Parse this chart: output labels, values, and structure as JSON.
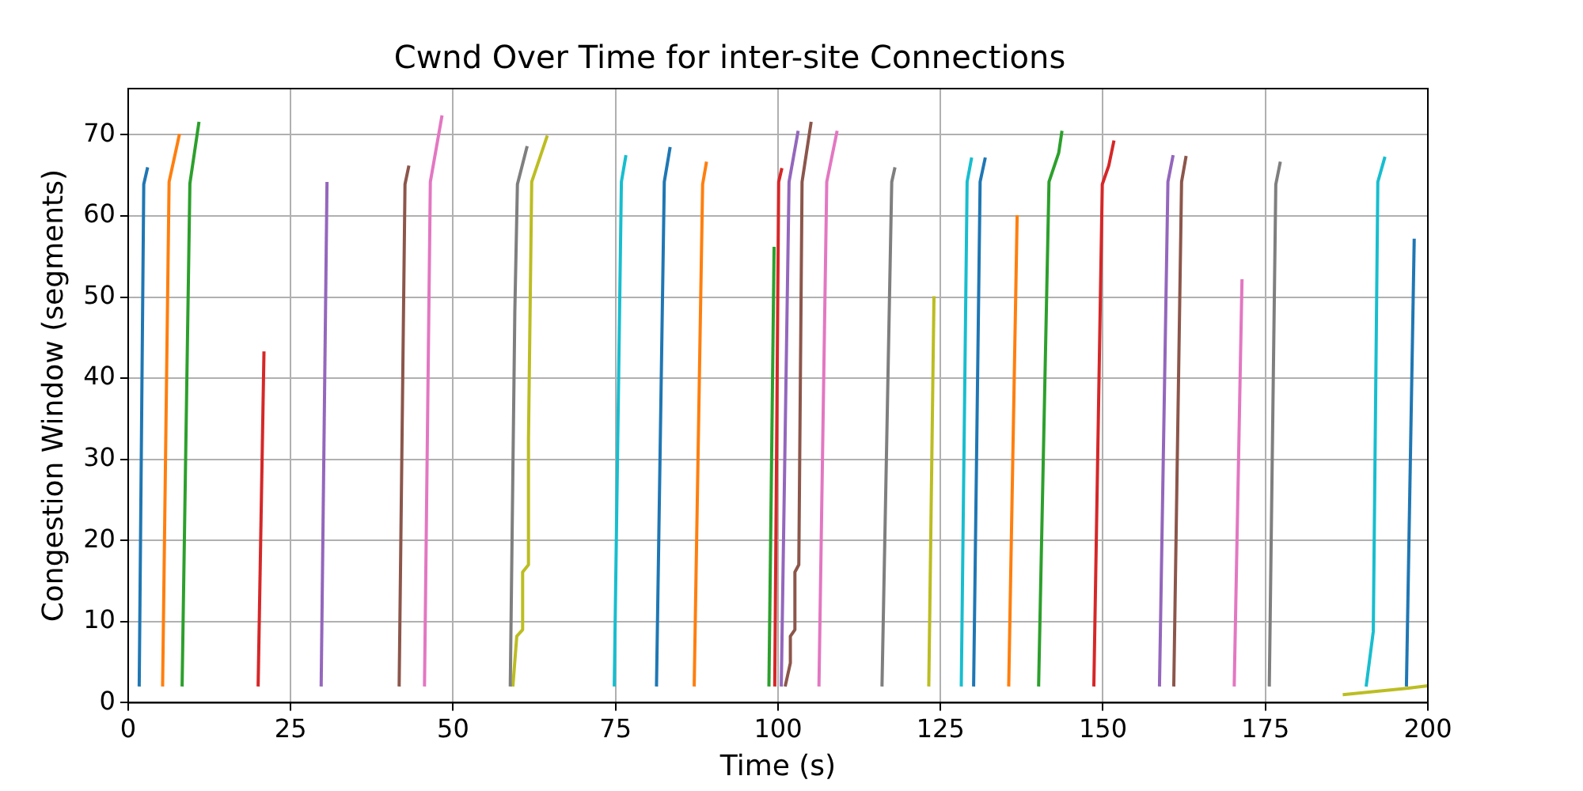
{
  "chart_data": {
    "type": "line",
    "title": "Cwnd Over Time for inter-site Connections",
    "xlabel": "Time (s)",
    "ylabel": "Congestion Window (segments)",
    "xlim": [
      0,
      200
    ],
    "ylim": [
      0,
      75.7
    ],
    "xticks": [
      0,
      25,
      50,
      75,
      100,
      125,
      150,
      175,
      200
    ],
    "yticks": [
      0,
      10,
      20,
      30,
      40,
      50,
      60,
      70
    ],
    "grid": true,
    "legend": false,
    "marker": "none",
    "line_style": "solid",
    "series": [
      {
        "color": "#1f77b4",
        "x": [
          1.7,
          2.4,
          3.0
        ],
        "values": [
          2,
          63.9,
          66
        ]
      },
      {
        "color": "#ff7f0e",
        "x": [
          5.3,
          6.3,
          7.9
        ],
        "values": [
          2,
          64.2,
          70.1
        ]
      },
      {
        "color": "#2ca02c",
        "x": [
          8.3,
          9.5,
          10.9
        ],
        "values": [
          2,
          64,
          71.6
        ]
      },
      {
        "color": "#d62728",
        "x": [
          20.0,
          20.9
        ],
        "values": [
          2,
          43.3
        ]
      },
      {
        "color": "#9467bd",
        "x": [
          29.7,
          30.6
        ],
        "values": [
          2,
          64.2
        ]
      },
      {
        "color": "#8c564b",
        "x": [
          41.7,
          42.6,
          43.2
        ],
        "values": [
          2,
          63.9,
          66.2
        ]
      },
      {
        "color": "#e377c2",
        "x": [
          45.6,
          46.5,
          48.3
        ],
        "values": [
          2,
          64.2,
          72.4
        ]
      },
      {
        "color": "#7f7f7f",
        "x": [
          58.8,
          59.5,
          59.9,
          61.4
        ],
        "values": [
          2,
          48.2,
          63.9,
          68.6
        ]
      },
      {
        "color": "#bcbd22",
        "x": [
          59.2,
          59.8,
          60.7,
          60.7,
          61.6,
          61.6,
          62.1,
          64.5
        ],
        "values": [
          2,
          8.2,
          9,
          16.1,
          17,
          32.4,
          64.2,
          69.9
        ]
      },
      {
        "color": "#17becf",
        "x": [
          74.8,
          75.9,
          76.6
        ],
        "values": [
          2,
          64.2,
          67.5
        ]
      },
      {
        "color": "#1f77b4",
        "x": [
          81.3,
          82.5,
          83.4
        ],
        "values": [
          2,
          64.2,
          68.5
        ]
      },
      {
        "color": "#ff7f0e",
        "x": [
          87.1,
          88.4,
          89.0
        ],
        "values": [
          2,
          63.9,
          66.7
        ]
      },
      {
        "color": "#2ca02c",
        "x": [
          98.6,
          99.4
        ],
        "values": [
          2,
          56.2
        ]
      },
      {
        "color": "#d62728",
        "x": [
          99.5,
          100.1,
          100.6
        ],
        "values": [
          2,
          64.2,
          65.9
        ]
      },
      {
        "color": "#9467bd",
        "x": [
          100.5,
          101.7,
          103.1
        ],
        "values": [
          2,
          64.2,
          70.5
        ]
      },
      {
        "color": "#8c564b",
        "x": [
          101.1,
          101.9,
          101.9,
          102.6,
          102.6,
          103.2,
          103.7,
          105.1
        ],
        "values": [
          2,
          4.9,
          8.2,
          9,
          16.1,
          17,
          64.2,
          71.6
        ]
      },
      {
        "color": "#e377c2",
        "x": [
          106.3,
          107.5,
          109.1
        ],
        "values": [
          2,
          64.2,
          70.5
        ]
      },
      {
        "color": "#7f7f7f",
        "x": [
          116.0,
          117.5,
          118.0
        ],
        "values": [
          2,
          64.2,
          66
        ]
      },
      {
        "color": "#bcbd22",
        "x": [
          123.2,
          124.0
        ],
        "values": [
          2,
          50.1
        ]
      },
      {
        "color": "#17becf",
        "x": [
          128.2,
          129.1,
          129.8
        ],
        "values": [
          2,
          64.2,
          67.2
        ]
      },
      {
        "color": "#1f77b4",
        "x": [
          130.1,
          131.1,
          131.9
        ],
        "values": [
          2,
          64.2,
          67.2
        ]
      },
      {
        "color": "#ff7f0e",
        "x": [
          135.5,
          136.8
        ],
        "values": [
          2,
          60.1
        ]
      },
      {
        "color": "#2ca02c",
        "x": [
          140.1,
          141.7,
          143.2,
          143.7
        ],
        "values": [
          2,
          64.2,
          67.8,
          70.5
        ]
      },
      {
        "color": "#d62728",
        "x": [
          148.6,
          149.9,
          150.9,
          151.7
        ],
        "values": [
          2,
          63.9,
          66.2,
          69.3
        ]
      },
      {
        "color": "#9467bd",
        "x": [
          158.7,
          160.0,
          160.8
        ],
        "values": [
          2,
          64.2,
          67.5
        ]
      },
      {
        "color": "#8c564b",
        "x": [
          160.9,
          162.1,
          162.8
        ],
        "values": [
          2,
          64.2,
          67.4
        ]
      },
      {
        "color": "#e377c2",
        "x": [
          170.2,
          171.4
        ],
        "values": [
          2,
          52.2
        ]
      },
      {
        "color": "#7f7f7f",
        "x": [
          175.6,
          176.6,
          177.3
        ],
        "values": [
          2,
          63.9,
          66.7
        ]
      },
      {
        "color": "#bcbd22",
        "x": [
          186.9,
          197.0,
          200.0
        ],
        "values": [
          1,
          1.8,
          2.1
        ]
      },
      {
        "color": "#17becf",
        "x": [
          190.5,
          191.6,
          192.3,
          193.4
        ],
        "values": [
          2,
          8.8,
          64.2,
          67.3
        ]
      },
      {
        "color": "#1f77b4",
        "x": [
          196.7,
          197.9
        ],
        "values": [
          2,
          57.2
        ]
      }
    ]
  }
}
